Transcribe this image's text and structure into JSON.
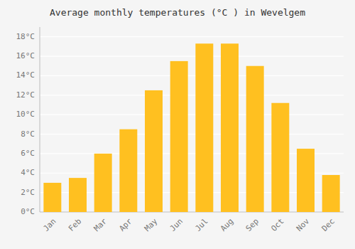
{
  "chart_data": {
    "type": "bar",
    "title": "Average monthly temperatures (°C ) in Wevelgem",
    "categories": [
      "Jan",
      "Feb",
      "Mar",
      "Apr",
      "May",
      "Jun",
      "Jul",
      "Aug",
      "Sep",
      "Oct",
      "Nov",
      "Dec"
    ],
    "values": [
      3.0,
      3.5,
      6.0,
      8.5,
      12.5,
      15.5,
      17.3,
      17.3,
      15.0,
      11.2,
      6.5,
      3.8
    ],
    "color": "#FFC020",
    "ylim": [
      0,
      19
    ],
    "yticks": [
      {
        "value": 0,
        "label": "0°C"
      },
      {
        "value": 2,
        "label": "2°C"
      },
      {
        "value": 4,
        "label": "4°C"
      },
      {
        "value": 6,
        "label": "6°C"
      },
      {
        "value": 8,
        "label": "8°C"
      },
      {
        "value": 10,
        "label": "10°C"
      },
      {
        "value": 12,
        "label": "12°C"
      },
      {
        "value": 14,
        "label": "14°C"
      },
      {
        "value": 16,
        "label": "16°C"
      },
      {
        "value": 18,
        "label": "18°C"
      }
    ],
    "grid": true
  }
}
